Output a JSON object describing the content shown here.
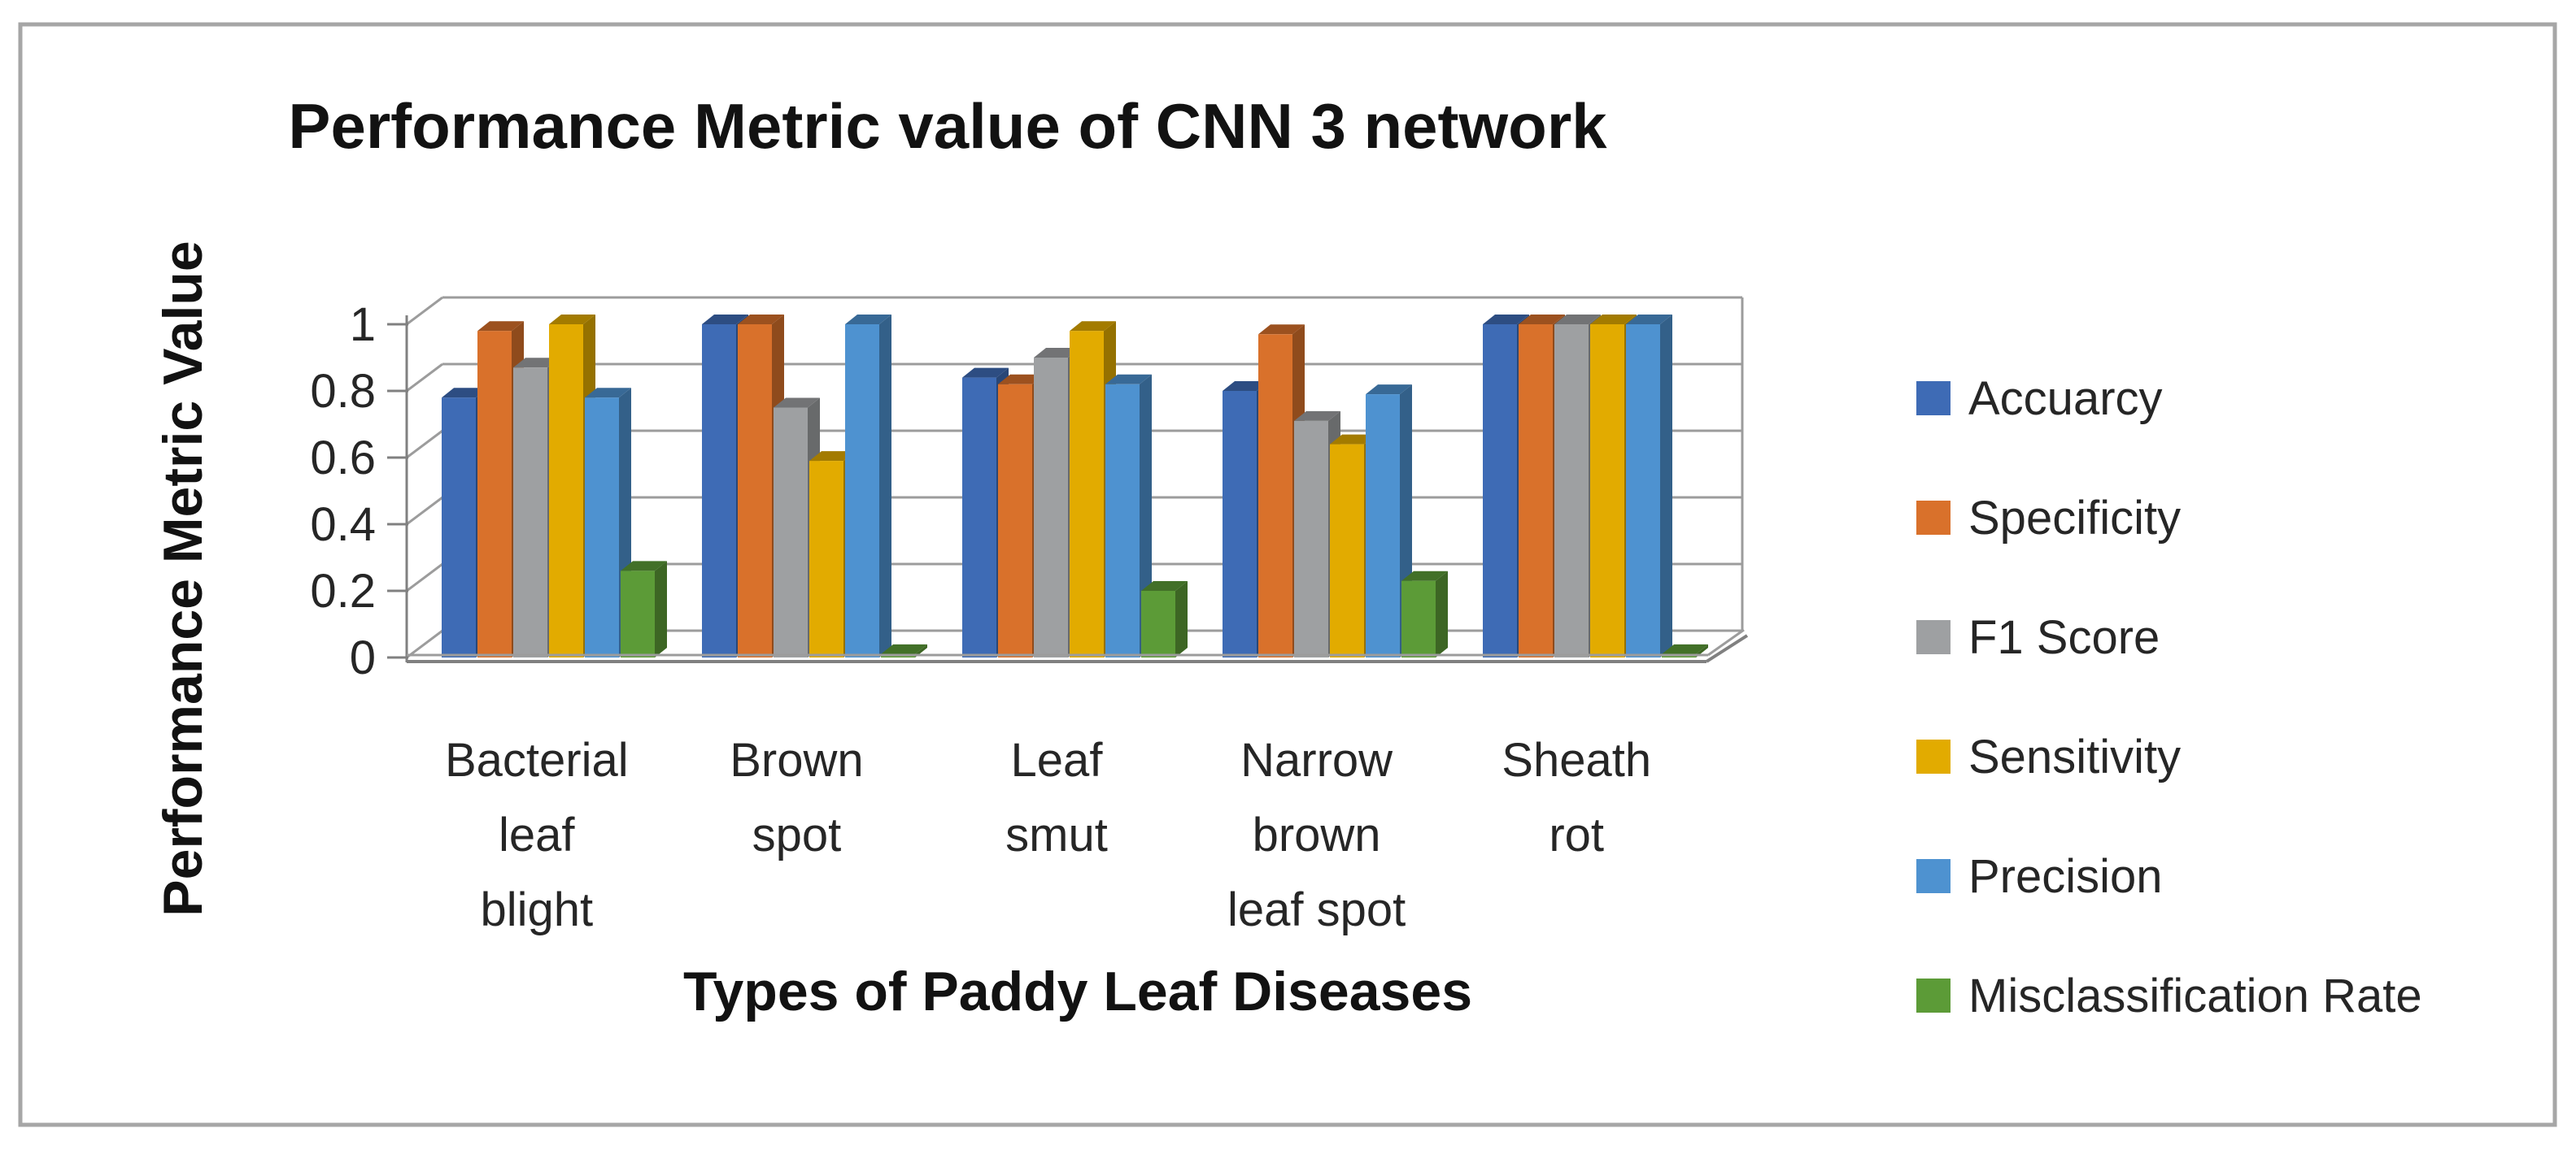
{
  "window": {
    "background": "#ffffff",
    "frame_border_color": "#a6a6a6"
  },
  "chart_data": {
    "type": "bar",
    "variant": "3d-clustered-column",
    "title": "Performance Metric value of CNN 3 network",
    "xlabel": "Types of Paddy Leaf Diseases",
    "ylabel": "Performance Metric Value",
    "ylim": [
      0,
      1
    ],
    "ytick_step": 0.2,
    "yticks": [
      "1",
      "0.8",
      "0.6",
      "0.4",
      "0.2",
      "0"
    ],
    "grid": true,
    "legend_position": "right",
    "categories": [
      "Bacterial leaf blight",
      "Brown spot",
      "Leaf smut",
      "Narrow brown leaf spot",
      "Sheath rot"
    ],
    "category_lines": [
      [
        "Bacterial",
        "leaf",
        "blight"
      ],
      [
        "Brown",
        "spot"
      ],
      [
        "Leaf",
        "smut"
      ],
      [
        "Narrow",
        "brown",
        "leaf spot"
      ],
      [
        "Sheath",
        "rot"
      ]
    ],
    "series": [
      {
        "name": "Accuarcy",
        "color": "#3E6BB5",
        "values": [
          0.78,
          1.0,
          0.84,
          0.8,
          1.0
        ]
      },
      {
        "name": "Specificity",
        "color": "#D9712B",
        "values": [
          0.98,
          1.0,
          0.82,
          0.97,
          1.0
        ]
      },
      {
        "name": "F1 Score",
        "color": "#9EA0A2",
        "values": [
          0.87,
          0.75,
          0.9,
          0.71,
          1.0
        ]
      },
      {
        "name": "Sensitivity",
        "color": "#E2AB00",
        "values": [
          1.0,
          0.59,
          0.98,
          0.64,
          1.0
        ]
      },
      {
        "name": "Precision",
        "color": "#4E92D0",
        "values": [
          0.78,
          1.0,
          0.82,
          0.79,
          1.0
        ]
      },
      {
        "name": "Misclassification Rate",
        "color": "#5C9B37",
        "values": [
          0.26,
          0.01,
          0.2,
          0.23,
          0.01
        ]
      }
    ],
    "gridline_color": "#9C9C9C",
    "axis_color": "#808080",
    "text_color": "#262626"
  }
}
